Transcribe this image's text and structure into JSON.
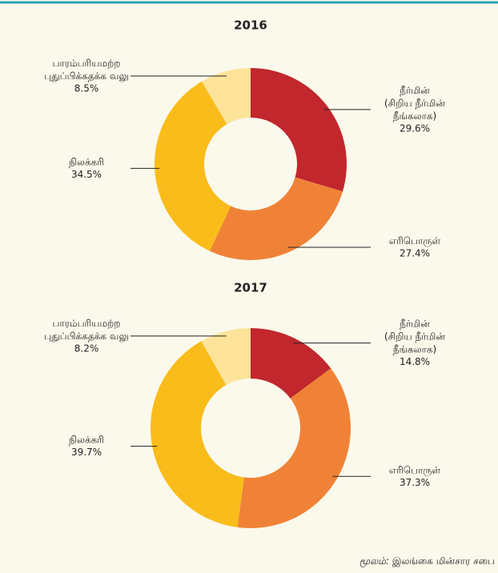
{
  "chart_data": [
    {
      "type": "donut",
      "title": "2016",
      "categories": [
        "நீர்மின்\n(சிறிய நீர்மின்\nநீங்கலாக)",
        "எரிபொருள்",
        "நிலக்கரி",
        "பாரம்பரியமற்ற\nபுதுப்பிக்கதக்க வலு"
      ],
      "values": [
        29.6,
        27.4,
        34.5,
        8.5
      ],
      "value_labels": [
        "29.6%",
        "27.4%",
        "34.5%",
        "8.5%"
      ],
      "colors": [
        "#c1272d",
        "#f08237",
        "#f9bc1a",
        "#fde49a"
      ]
    },
    {
      "type": "donut",
      "title": "2017",
      "categories": [
        "நீர்மின்\n(சிறிய நீர்மின்\nநீங்கலாக)",
        "எரிபொருள்",
        "நிலக்கரி",
        "பாரம்பரியமற்ற\nபுதுப்பிக்கதக்க வலு"
      ],
      "values": [
        14.8,
        37.3,
        39.7,
        8.2
      ],
      "value_labels": [
        "14.8%",
        "37.3%",
        "39.7%",
        "8.2%"
      ],
      "colors": [
        "#c1272d",
        "#f08237",
        "#f9bc1a",
        "#fde49a"
      ]
    }
  ],
  "source": {
    "label": "மூலம்:",
    "text": "இலங்கை மின்சார சபை"
  }
}
